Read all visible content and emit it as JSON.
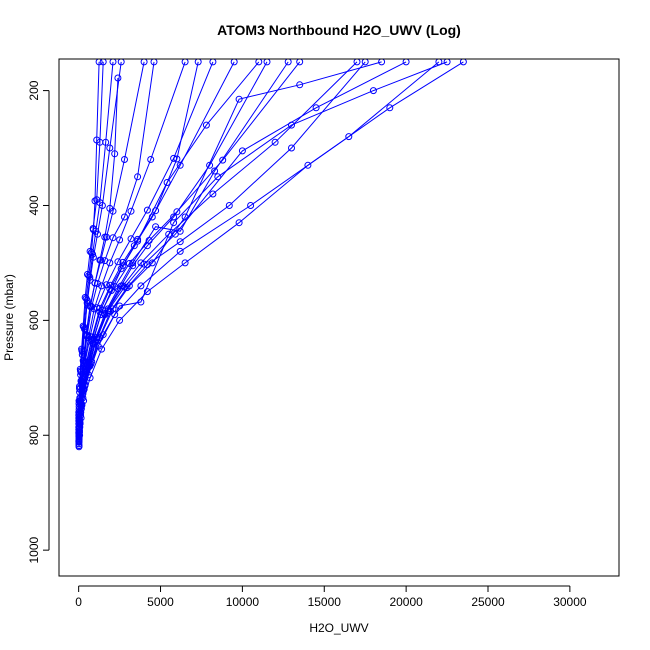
{
  "chart_data": {
    "type": "line",
    "title": "ATOM3 Northbound H2O_UWV (Log)",
    "xlabel": "H2O_UWV",
    "ylabel": "Pressure (mbar)",
    "xlim": [
      -1200,
      33000
    ],
    "ylim": [
      1045,
      145
    ],
    "y_reversed": true,
    "x_ticks": [
      0,
      5000,
      10000,
      15000,
      20000,
      25000,
      30000
    ],
    "y_ticks": [
      200,
      400,
      600,
      800,
      1000
    ],
    "grid": false,
    "legend": "none",
    "line_color": "#0000ff",
    "marker": "open-circle",
    "series": [
      {
        "x": [
          20,
          60,
          150,
          300,
          700,
          1400,
          2500,
          4200,
          6500,
          9800,
          14000,
          19000,
          23500
        ],
        "y": [
          820,
          800,
          770,
          740,
          700,
          650,
          600,
          550,
          500,
          430,
          330,
          230,
          150
        ]
      },
      {
        "x": [
          15,
          50,
          120,
          260,
          600,
          1200,
          2200,
          3800,
          6200,
          10500,
          16500,
          22000
        ],
        "y": [
          815,
          795,
          765,
          735,
          695,
          645,
          590,
          540,
          480,
          400,
          280,
          150
        ]
      },
      {
        "x": [
          10,
          40,
          100,
          220,
          480,
          900,
          1600,
          2700,
          3800,
          5500,
          8200,
          12000,
          17000
        ],
        "y": [
          810,
          790,
          760,
          725,
          690,
          640,
          590,
          540,
          500,
          450,
          380,
          290,
          150
        ]
      },
      {
        "x": [
          25,
          70,
          160,
          320,
          650,
          1100,
          1800,
          2600,
          3300,
          4200,
          5800,
          8000,
          11500
        ],
        "y": [
          805,
          780,
          750,
          720,
          680,
          630,
          580,
          540,
          505,
          470,
          420,
          330,
          150
        ]
      },
      {
        "x": [
          15,
          45,
          110,
          230,
          450,
          800,
          1300,
          1900,
          2600,
          3400,
          4500,
          6200,
          9500
        ],
        "y": [
          800,
          775,
          745,
          715,
          680,
          635,
          585,
          545,
          510,
          470,
          420,
          330,
          150
        ]
      },
      {
        "x": [
          10,
          35,
          90,
          180,
          350,
          600,
          950,
          1400,
          1900,
          2500,
          3200,
          4400,
          6500
        ],
        "y": [
          790,
          770,
          740,
          710,
          675,
          630,
          580,
          540,
          500,
          460,
          410,
          320,
          150
        ]
      },
      {
        "x": [
          12,
          30,
          70,
          150,
          280,
          450,
          700,
          1000,
          1350,
          1700,
          2100,
          2800,
          4000
        ],
        "y": [
          780,
          760,
          735,
          705,
          670,
          625,
          575,
          535,
          495,
          455,
          410,
          320,
          150
        ]
      },
      {
        "x": [
          8,
          25,
          60,
          120,
          220,
          360,
          520,
          700,
          900,
          1150,
          1450,
          1900,
          2600
        ],
        "y": [
          775,
          755,
          725,
          695,
          660,
          615,
          570,
          530,
          490,
          450,
          400,
          300,
          150
        ]
      },
      {
        "x": [
          10,
          30,
          70,
          140,
          250,
          380,
          520,
          680,
          850,
          1050,
          1300,
          1650,
          2100
        ],
        "y": [
          770,
          750,
          720,
          690,
          655,
          615,
          565,
          525,
          485,
          445,
          395,
          290,
          150
        ]
      },
      {
        "x": [
          8,
          20,
          50,
          100,
          180,
          280,
          400,
          540,
          700,
          880,
          1100,
          1300,
          1500
        ],
        "y": [
          760,
          740,
          715,
          685,
          650,
          610,
          560,
          520,
          480,
          440,
          390,
          290,
          150
        ]
      },
      {
        "x": [
          20,
          55,
          130,
          260,
          500,
          850,
          1350,
          2000,
          2700,
          3600,
          5400,
          7800,
          11000
        ],
        "y": [
          818,
          792,
          760,
          728,
          688,
          640,
          590,
          548,
          505,
          462,
          360,
          260,
          150
        ]
      },
      {
        "x": [
          18,
          60,
          140,
          300,
          580,
          1000,
          1600,
          2400,
          3300,
          4700,
          6200,
          8300,
          12800
        ],
        "y": [
          812,
          785,
          755,
          722,
          682,
          638,
          588,
          545,
          500,
          437,
          445,
          340,
          150
        ]
      },
      {
        "x": [
          30,
          90,
          200,
          400,
          800,
          1500,
          2500,
          3800,
          5800,
          8500,
          13000,
          18000,
          22500
        ],
        "y": [
          808,
          780,
          748,
          712,
          672,
          625,
          575,
          568,
          430,
          350,
          260,
          200,
          150
        ]
      },
      {
        "x": [
          14,
          40,
          95,
          200,
          400,
          700,
          1100,
          1700,
          2400,
          3200,
          4200,
          5800,
          8200
        ],
        "y": [
          798,
          772,
          742,
          710,
          672,
          628,
          578,
          538,
          498,
          458,
          408,
          318,
          150
        ]
      },
      {
        "x": [
          12,
          38,
          85,
          170,
          320,
          520,
          800,
          1150,
          1600,
          2100,
          2800,
          3600,
          4600
        ],
        "y": [
          795,
          770,
          740,
          708,
          670,
          626,
          576,
          536,
          496,
          456,
          420,
          350,
          150
        ]
      },
      {
        "x": [
          25,
          80,
          190,
          380,
          750,
          1300,
          2100,
          3100,
          4500,
          6500,
          9800,
          13500,
          18500
        ],
        "y": [
          803,
          778,
          746,
          714,
          676,
          630,
          580,
          540,
          500,
          420,
          215,
          190,
          150
        ]
      },
      {
        "x": [
          20,
          65,
          150,
          310,
          620,
          1100,
          1800,
          2800,
          4000,
          5900,
          10000,
          14500,
          20000
        ],
        "y": [
          806,
          781,
          750,
          718,
          678,
          633,
          583,
          542,
          502,
          450,
          305,
          230,
          150
        ]
      },
      {
        "x": [
          10,
          30,
          75,
          150,
          290,
          480,
          720,
          1000,
          1300,
          1600,
          1900,
          2200,
          2400
        ],
        "y": [
          786,
          764,
          736,
          706,
          671,
          627,
          576,
          535,
          495,
          455,
          405,
          310,
          178
        ]
      },
      {
        "x": [
          8,
          22,
          55,
          110,
          200,
          320,
          460,
          620,
          780,
          900,
          1000,
          1100,
          1250
        ],
        "y": [
          765,
          745,
          718,
          688,
          653,
          612,
          562,
          522,
          482,
          442,
          392,
          286,
          150
        ]
      },
      {
        "x": [
          15,
          50,
          120,
          250,
          480,
          820,
          1300,
          1950,
          2700,
          3600,
          4700,
          6000,
          7300
        ],
        "y": [
          797,
          773,
          743,
          711,
          673,
          629,
          579,
          539,
          499,
          459,
          409,
          319,
          150
        ]
      },
      {
        "x": [
          22,
          70,
          170,
          340,
          680,
          1200,
          1950,
          2950,
          4200,
          6200,
          9200,
          13000,
          17500
        ],
        "y": [
          811,
          786,
          754,
          720,
          680,
          634,
          584,
          543,
          503,
          463,
          400,
          300,
          150
        ]
      },
      {
        "x": [
          18,
          55,
          130,
          270,
          520,
          900,
          1450,
          2200,
          3100,
          4300,
          6000,
          8800,
          13500
        ],
        "y": [
          802,
          777,
          747,
          716,
          677,
          632,
          582,
          541,
          501,
          461,
          411,
          321,
          150
        ]
      }
    ]
  }
}
